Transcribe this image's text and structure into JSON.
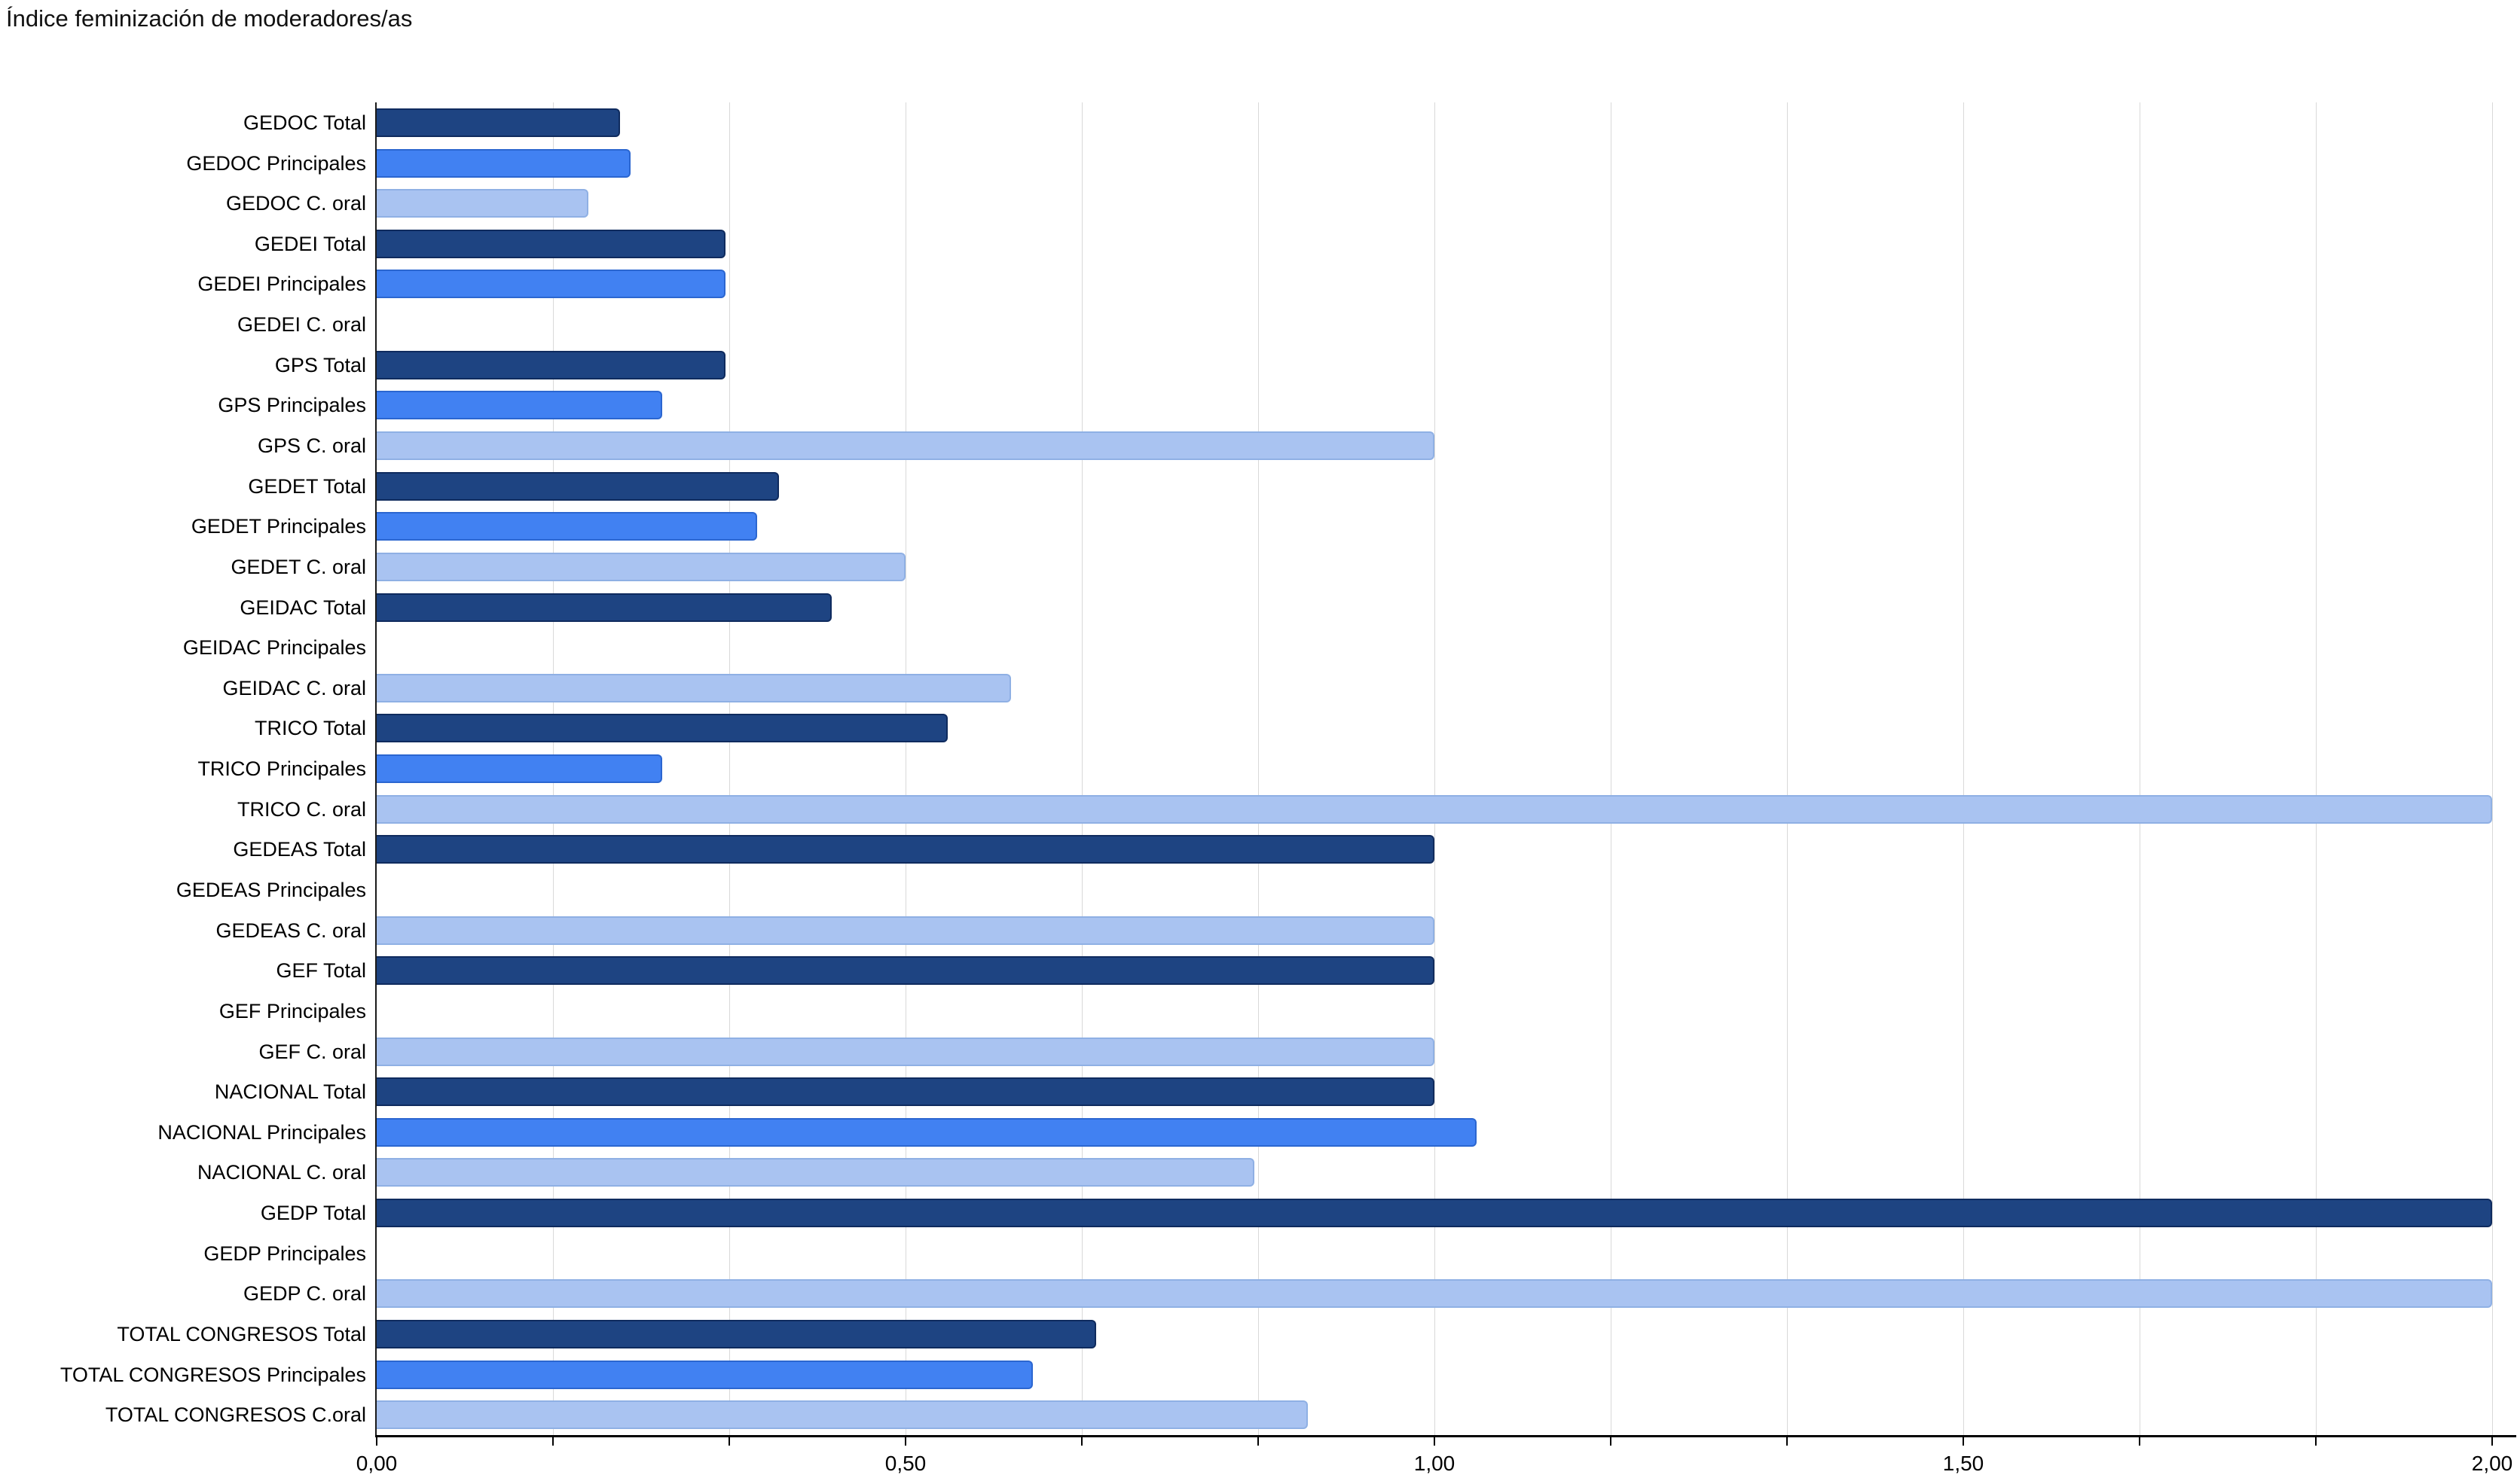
{
  "title": "Índice feminización de moderadores/as",
  "colors": {
    "background": "#ffffff",
    "axis": "#000000",
    "gridline": "#d9d9d9",
    "series_total": "#1e4482",
    "series_principales": "#4181f2",
    "series_c_oral": "#a9c3f1"
  },
  "chart_data": {
    "type": "bar",
    "orientation": "horizontal",
    "title": "Índice feminización de moderadores/as",
    "xlabel": "",
    "ylabel": "",
    "xlim": [
      0,
      2
    ],
    "grid": true,
    "legend": false,
    "gridline_step": 0.16667,
    "x_tick_labels": [
      "0,00",
      "0,50",
      "1,00",
      "1,50",
      "2,00"
    ],
    "x_tick_values": [
      0,
      0.5,
      1.0,
      1.5,
      2.0
    ],
    "series": [
      {
        "name": "Total",
        "color": "#1e4482",
        "border": "#0f2b5e"
      },
      {
        "name": "Principales",
        "color": "#4181f2",
        "border": "#2b66d0"
      },
      {
        "name": "C. oral",
        "color": "#a9c3f1",
        "border": "#8fb0e4"
      }
    ],
    "items": [
      {
        "label": "GEDOC Total",
        "series": "Total",
        "value": 0.23
      },
      {
        "label": "GEDOC Principales",
        "series": "Principales",
        "value": 0.24
      },
      {
        "label": "GEDOC C. oral",
        "series": "C. oral",
        "value": 0.2
      },
      {
        "label": "GEDEI Total",
        "series": "Total",
        "value": 0.33
      },
      {
        "label": "GEDEI Principales",
        "series": "Principales",
        "value": 0.33
      },
      {
        "label": "GEDEI C. oral",
        "series": "C. oral",
        "value": 0
      },
      {
        "label": "GPS Total",
        "series": "Total",
        "value": 0.33
      },
      {
        "label": "GPS Principales",
        "series": "Principales",
        "value": 0.27
      },
      {
        "label": "GPS C. oral",
        "series": "C. oral",
        "value": 1.0
      },
      {
        "label": "GEDET Total",
        "series": "Total",
        "value": 0.38
      },
      {
        "label": "GEDET Principales",
        "series": "Principales",
        "value": 0.36
      },
      {
        "label": "GEDET C. oral",
        "series": "C. oral",
        "value": 0.5
      },
      {
        "label": "GEIDAC Total",
        "series": "Total",
        "value": 0.43
      },
      {
        "label": "GEIDAC Principales",
        "series": "Principales",
        "value": 0
      },
      {
        "label": "GEIDAC C. oral",
        "series": "C. oral",
        "value": 0.6
      },
      {
        "label": "TRICO Total",
        "series": "Total",
        "value": 0.54
      },
      {
        "label": "TRICO Principales",
        "series": "Principales",
        "value": 0.27
      },
      {
        "label": "TRICO C. oral",
        "series": "C. oral",
        "value": 2.0
      },
      {
        "label": "GEDEAS Total",
        "series": "Total",
        "value": 1.0
      },
      {
        "label": "GEDEAS Principales",
        "series": "Principales",
        "value": 0
      },
      {
        "label": "GEDEAS C. oral",
        "series": "C. oral",
        "value": 1.0
      },
      {
        "label": "GEF Total",
        "series": "Total",
        "value": 1.0
      },
      {
        "label": "GEF Principales",
        "series": "Principales",
        "value": 0
      },
      {
        "label": "GEF C. oral",
        "series": "C. oral",
        "value": 1.0
      },
      {
        "label": "NACIONAL Total",
        "series": "Total",
        "value": 1.0
      },
      {
        "label": "NACIONAL Principales",
        "series": "Principales",
        "value": 1.04
      },
      {
        "label": "NACIONAL C. oral",
        "series": "C. oral",
        "value": 0.83
      },
      {
        "label": "GEDP Total",
        "series": "Total",
        "value": 2.0
      },
      {
        "label": "GEDP Principales",
        "series": "Principales",
        "value": 0
      },
      {
        "label": "GEDP C. oral",
        "series": "C. oral",
        "value": 2.0
      },
      {
        "label": "TOTAL CONGRESOS Total",
        "series": "Total",
        "value": 0.68
      },
      {
        "label": "TOTAL CONGRESOS Principales",
        "series": "Principales",
        "value": 0.62
      },
      {
        "label": "TOTAL CONGRESOS C.oral",
        "series": "C. oral",
        "value": 0.88
      }
    ]
  }
}
